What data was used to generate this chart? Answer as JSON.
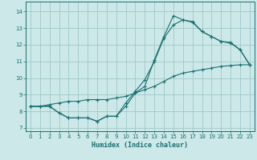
{
  "xlabel": "Humidex (Indice chaleur)",
  "xlim": [
    -0.5,
    23.5
  ],
  "ylim": [
    6.8,
    14.6
  ],
  "yticks": [
    7,
    8,
    9,
    10,
    11,
    12,
    13,
    14
  ],
  "xticks": [
    0,
    1,
    2,
    3,
    4,
    5,
    6,
    7,
    8,
    9,
    10,
    11,
    12,
    13,
    14,
    15,
    16,
    17,
    18,
    19,
    20,
    21,
    22,
    23
  ],
  "bg_color": "#cce8e8",
  "grid_color": "#a0c8c8",
  "line_color": "#1a7070",
  "line1_x": [
    0,
    1,
    2,
    3,
    4,
    5,
    6,
    7,
    8,
    9,
    10,
    11,
    12,
    13,
    14,
    15,
    16,
    17,
    18,
    19,
    20,
    21,
    22,
    23
  ],
  "line1_y": [
    8.3,
    8.3,
    8.3,
    7.9,
    7.6,
    7.6,
    7.6,
    7.4,
    7.7,
    7.7,
    8.3,
    9.1,
    9.5,
    11.1,
    12.5,
    13.75,
    13.5,
    13.4,
    12.8,
    12.5,
    12.2,
    12.15,
    11.7,
    10.8
  ],
  "line2_x": [
    0,
    1,
    2,
    3,
    4,
    5,
    6,
    7,
    8,
    9,
    10,
    11,
    12,
    13,
    14,
    15,
    16,
    17,
    18,
    19,
    20,
    21,
    22,
    23
  ],
  "line2_y": [
    8.3,
    8.3,
    8.3,
    7.9,
    7.6,
    7.6,
    7.6,
    7.4,
    7.7,
    7.7,
    8.5,
    9.2,
    9.9,
    11.0,
    12.4,
    13.2,
    13.5,
    13.35,
    12.8,
    12.5,
    12.2,
    12.1,
    11.7,
    10.8
  ],
  "line3_x": [
    0,
    1,
    2,
    3,
    4,
    5,
    6,
    7,
    8,
    9,
    10,
    11,
    12,
    13,
    14,
    15,
    16,
    17,
    18,
    19,
    20,
    21,
    22,
    23
  ],
  "line3_y": [
    8.3,
    8.3,
    8.4,
    8.5,
    8.6,
    8.6,
    8.7,
    8.7,
    8.7,
    8.8,
    8.9,
    9.1,
    9.3,
    9.5,
    9.8,
    10.1,
    10.3,
    10.4,
    10.5,
    10.6,
    10.7,
    10.75,
    10.8,
    10.8
  ]
}
